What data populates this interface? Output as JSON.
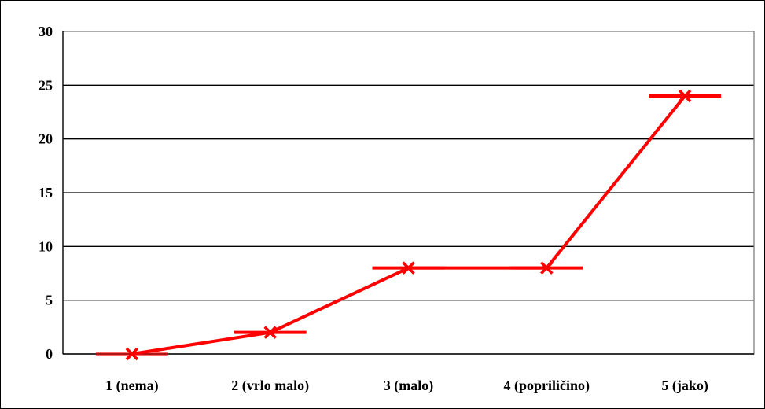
{
  "chart_data": {
    "type": "line",
    "categories": [
      "1 (nema)",
      "2 (vrlo malo)",
      "3 (malo)",
      "4 (popriličino)",
      "5 (jako)"
    ],
    "values": [
      0,
      2,
      8,
      8,
      24
    ],
    "series": [
      {
        "values": [
          0,
          2,
          8,
          8,
          24
        ],
        "color": "#ff0000",
        "marker": "x"
      }
    ],
    "ylim": [
      0,
      30
    ],
    "yticks": [
      0,
      5,
      10,
      15,
      20,
      25,
      30
    ],
    "ytick_labels": [
      "0",
      "5",
      "10",
      "15",
      "20",
      "25",
      "30"
    ],
    "grid": true,
    "legend": "none",
    "title": "",
    "xlabel": "",
    "ylabel": "",
    "colors": {
      "line": "#ff0000",
      "grid": "#000000",
      "plot_border": "#808080",
      "background": "#ffffff"
    }
  }
}
